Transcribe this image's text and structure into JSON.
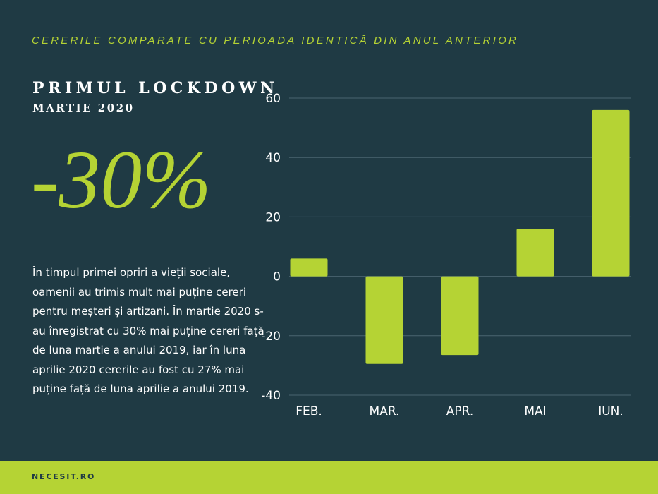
{
  "header": {
    "subtitle": "CERERILE COMPARATE CU PERIOADA IDENTICĂ DIN ANUL ANTERIOR",
    "title": "PRIMUL LOCKDOWN",
    "title_sub": "MARTIE 2020",
    "highlight": "-30%"
  },
  "description": "În timpul primei opriri a vieții sociale, oamenii au trimis mult mai puține cereri pentru meșteri și artizani. În martie 2020 s-au înregistrat cu 30% mai puține cereri față de luna martie a anului 2019, iar în luna aprilie 2020 cererile au fost cu 27% mai puține față de luna aprilie a anului 2019.",
  "footer": {
    "brand": "NECESIT.RO"
  },
  "colors": {
    "background": "#1f3a44",
    "accent": "#b5d334",
    "grid": "#4a6470",
    "text": "#ffffff"
  },
  "chart_data": {
    "type": "bar",
    "categories": [
      "FEB.",
      "MAR.",
      "APR.",
      "MAI",
      "IUN."
    ],
    "values": [
      6,
      -29.5,
      -26.5,
      16,
      56
    ],
    "yticks": [
      60,
      40,
      20,
      0,
      -20,
      -40
    ],
    "ylim": [
      -40,
      60
    ],
    "grid": true,
    "title": "",
    "xlabel": "",
    "ylabel": ""
  }
}
